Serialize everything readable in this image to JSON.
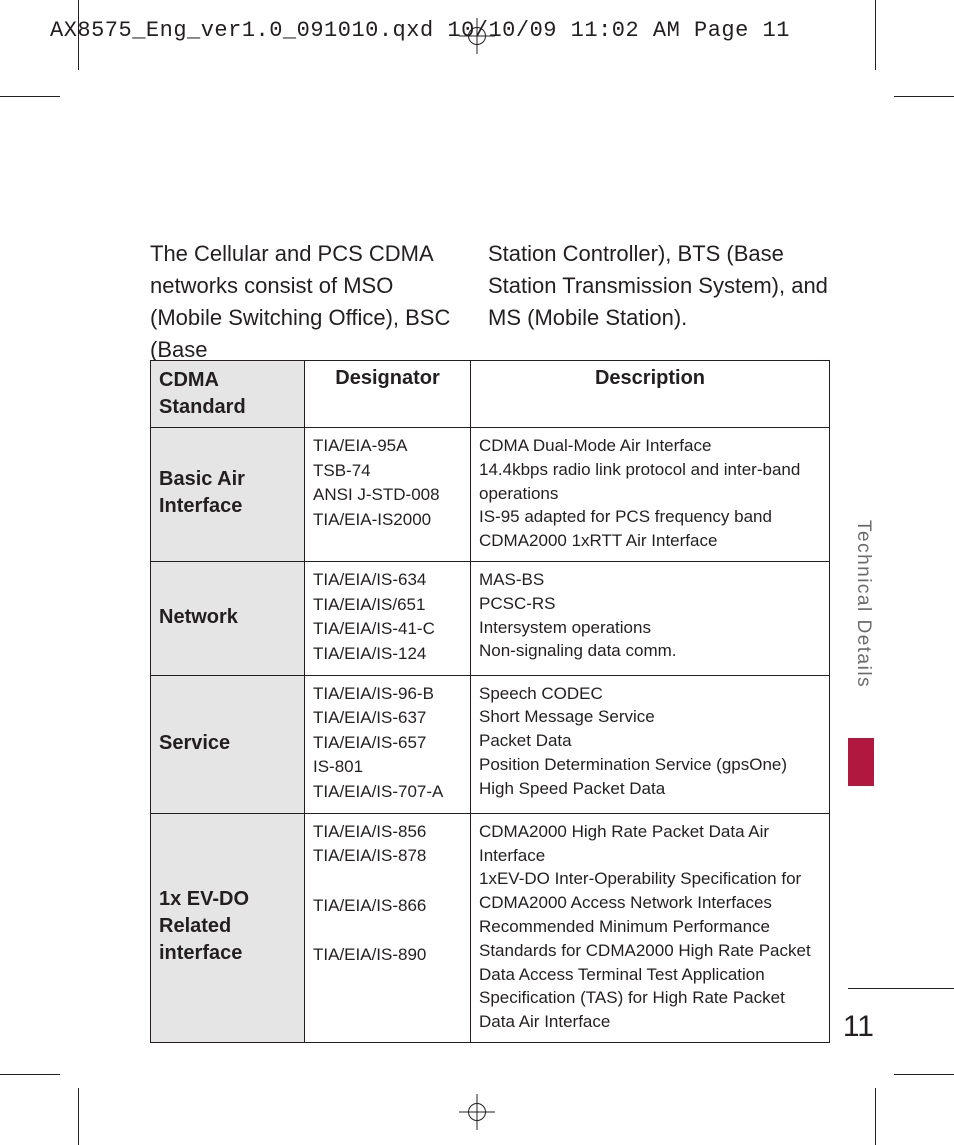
{
  "slug": "AX8575_Eng_ver1.0_091010.qxd  10/10/09  11:02 AM  Page 11",
  "body": {
    "left": "The Cellular and PCS CDMA networks consist of MSO (Mobile Switching Office), BSC (Base",
    "right": "Station Controller), BTS (Base Station Transmission System), and MS (Mobile Station)."
  },
  "table": {
    "header": {
      "c1": "CDMA Standard",
      "c2": "Designator",
      "c3": "Description"
    },
    "header_bg": "#e5e5e5",
    "category_bg": "#e5e5e5",
    "rows": [
      {
        "category": "Basic Air Interface",
        "designators": [
          "TIA/EIA-95A",
          "TSB-74",
          "ANSI J-STD-008",
          "TIA/EIA-IS2000"
        ],
        "descriptions": [
          "CDMA Dual-Mode Air Interface",
          "14.4kbps radio link protocol and inter-band operations",
          "IS-95 adapted for PCS frequency band",
          "CDMA2000 1xRTT Air Interface"
        ]
      },
      {
        "category": "Network",
        "designators": [
          "TIA/EIA/IS-634",
          "TIA/EIA/IS/651",
          "TIA/EIA/IS-41-C",
          "TIA/EIA/IS-124"
        ],
        "descriptions": [
          "MAS-BS",
          "PCSC-RS",
          "Intersystem operations",
          "Non-signaling data comm."
        ]
      },
      {
        "category": "Service",
        "designators": [
          "TIA/EIA/IS-96-B",
          "TIA/EIA/IS-637",
          "TIA/EIA/IS-657",
          "IS-801",
          "TIA/EIA/IS-707-A"
        ],
        "descriptions": [
          "Speech CODEC",
          "Short Message Service",
          "Packet Data",
          "Position Determination Service (gpsOne)",
          "High Speed Packet Data"
        ]
      },
      {
        "category": "1x EV-DO Related interface",
        "designators": [
          "TIA/EIA/IS-856",
          "TIA/EIA/IS-878",
          "",
          "TIA/EIA/IS-866",
          "",
          "TIA/EIA/IS-890"
        ],
        "descriptions": [
          "CDMA2000 High Rate Packet Data Air Interface",
          "1xEV-DO Inter-Operability Specification for CDMA2000 Access Network Interfaces",
          "Recommended Minimum Performance Standards for CDMA2000 High Rate Packet Data Access Terminal Test Application Specification (TAS) for High Rate Packet Data Air Interface"
        ]
      }
    ]
  },
  "side_tab": "Technical Details",
  "side_bar_color": "#b01840",
  "page_number": "11",
  "colors": {
    "text": "#231f20",
    "muted": "#6b6b6b",
    "rule": "#231f20"
  }
}
